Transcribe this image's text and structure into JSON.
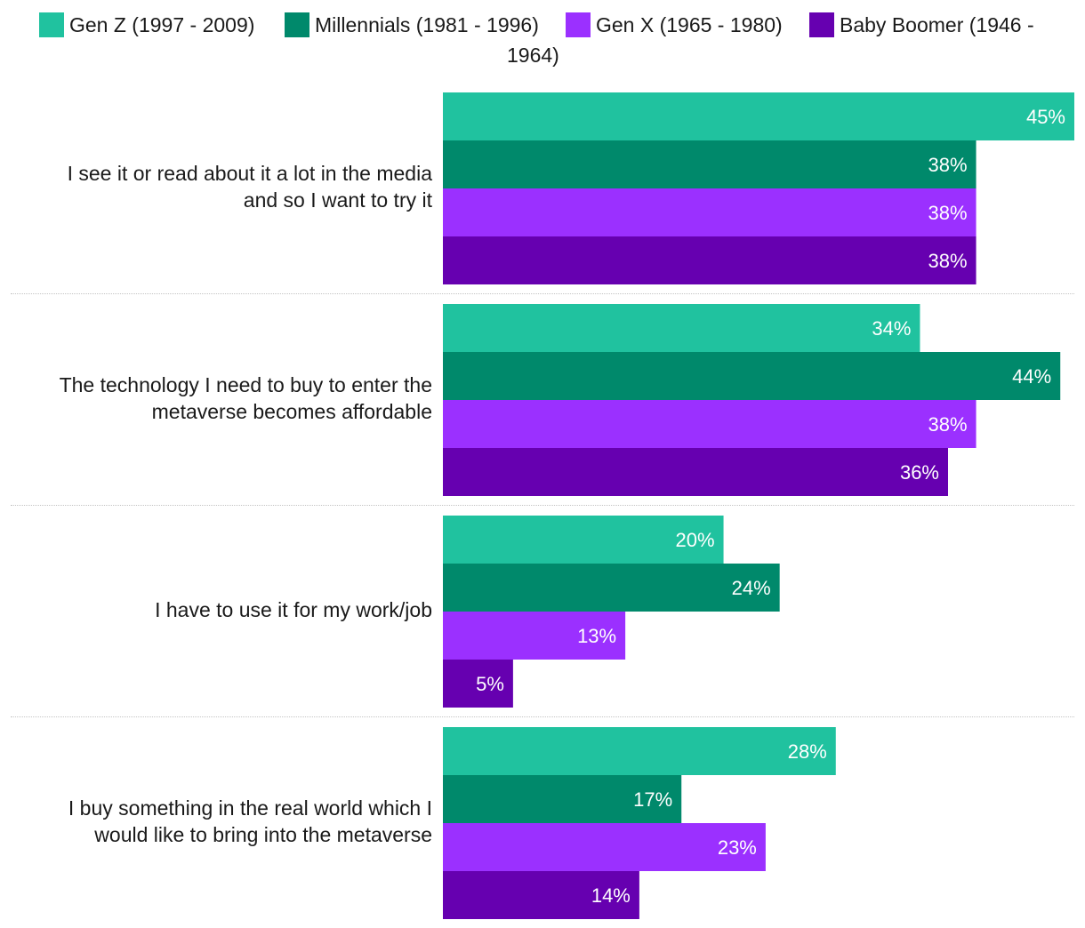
{
  "chart_data": {
    "type": "bar",
    "orientation": "horizontal",
    "title": "",
    "xlabel": "",
    "ylabel": "",
    "xlim": [
      0,
      45
    ],
    "grid": false,
    "legend_position": "top",
    "value_suffix": "%",
    "categories": [
      "I see it or read about it a lot in the media and so I want to try it",
      "The technology I need to buy to enter the metaverse becomes affordable",
      "I have to use it for my work/job",
      "I buy something in the real world which I would like to bring into the metaverse"
    ],
    "series": [
      {
        "name": "Gen Z (1997 - 2009)",
        "color": "#20c29f",
        "values": [
          45,
          34,
          20,
          28
        ]
      },
      {
        "name": "Millennials (1981 - 1996)",
        "color": "#00896b",
        "values": [
          38,
          44,
          24,
          17
        ]
      },
      {
        "name": "Gen X (1965 - 1980)",
        "color": "#9b30ff",
        "values": [
          38,
          38,
          13,
          23
        ]
      },
      {
        "name": "Baby Boomer (1946 - 1964)",
        "color": "#6600b0",
        "values": [
          38,
          36,
          5,
          14
        ]
      }
    ]
  }
}
